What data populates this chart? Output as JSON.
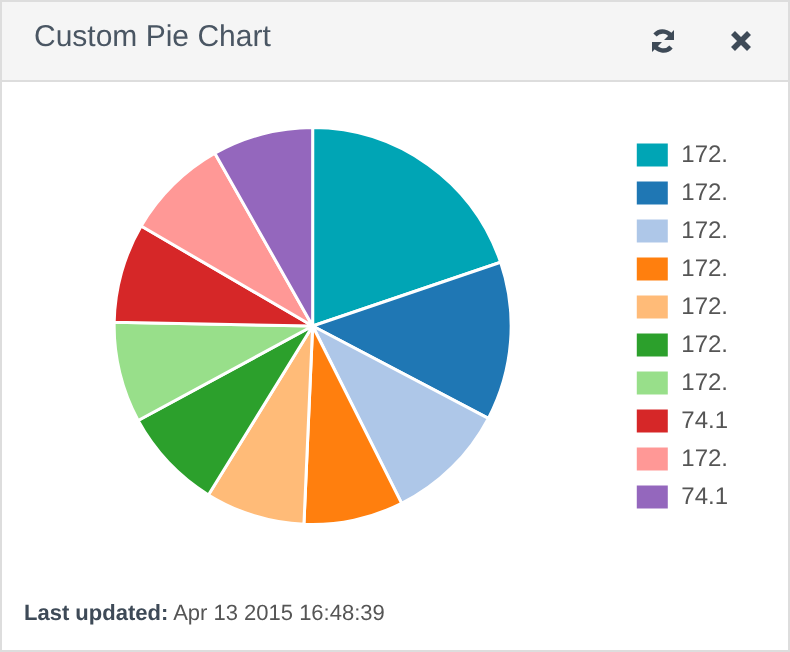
{
  "chart_data": {
    "type": "pie",
    "title": "Custom Pie Chart",
    "categories": [
      "172.",
      "172.",
      "172.",
      "172.",
      "172.",
      "172.",
      "172.",
      "74.1",
      "172.",
      "74.1"
    ],
    "values": [
      19.8,
      12.9,
      9.9,
      8.1,
      8.1,
      8.3,
      8.2,
      8.1,
      8.4,
      8.2
    ],
    "colors": [
      "#00a5b5",
      "#1f77b4",
      "#aec7e8",
      "#ff7f0e",
      "#ffbb78",
      "#2ca02c",
      "#98df8a",
      "#d62728",
      "#ff9896",
      "#9467bd"
    ],
    "legend": "right",
    "annotations": [
      "Last updated:",
      "Apr 13 2015 16:48:39"
    ]
  }
}
